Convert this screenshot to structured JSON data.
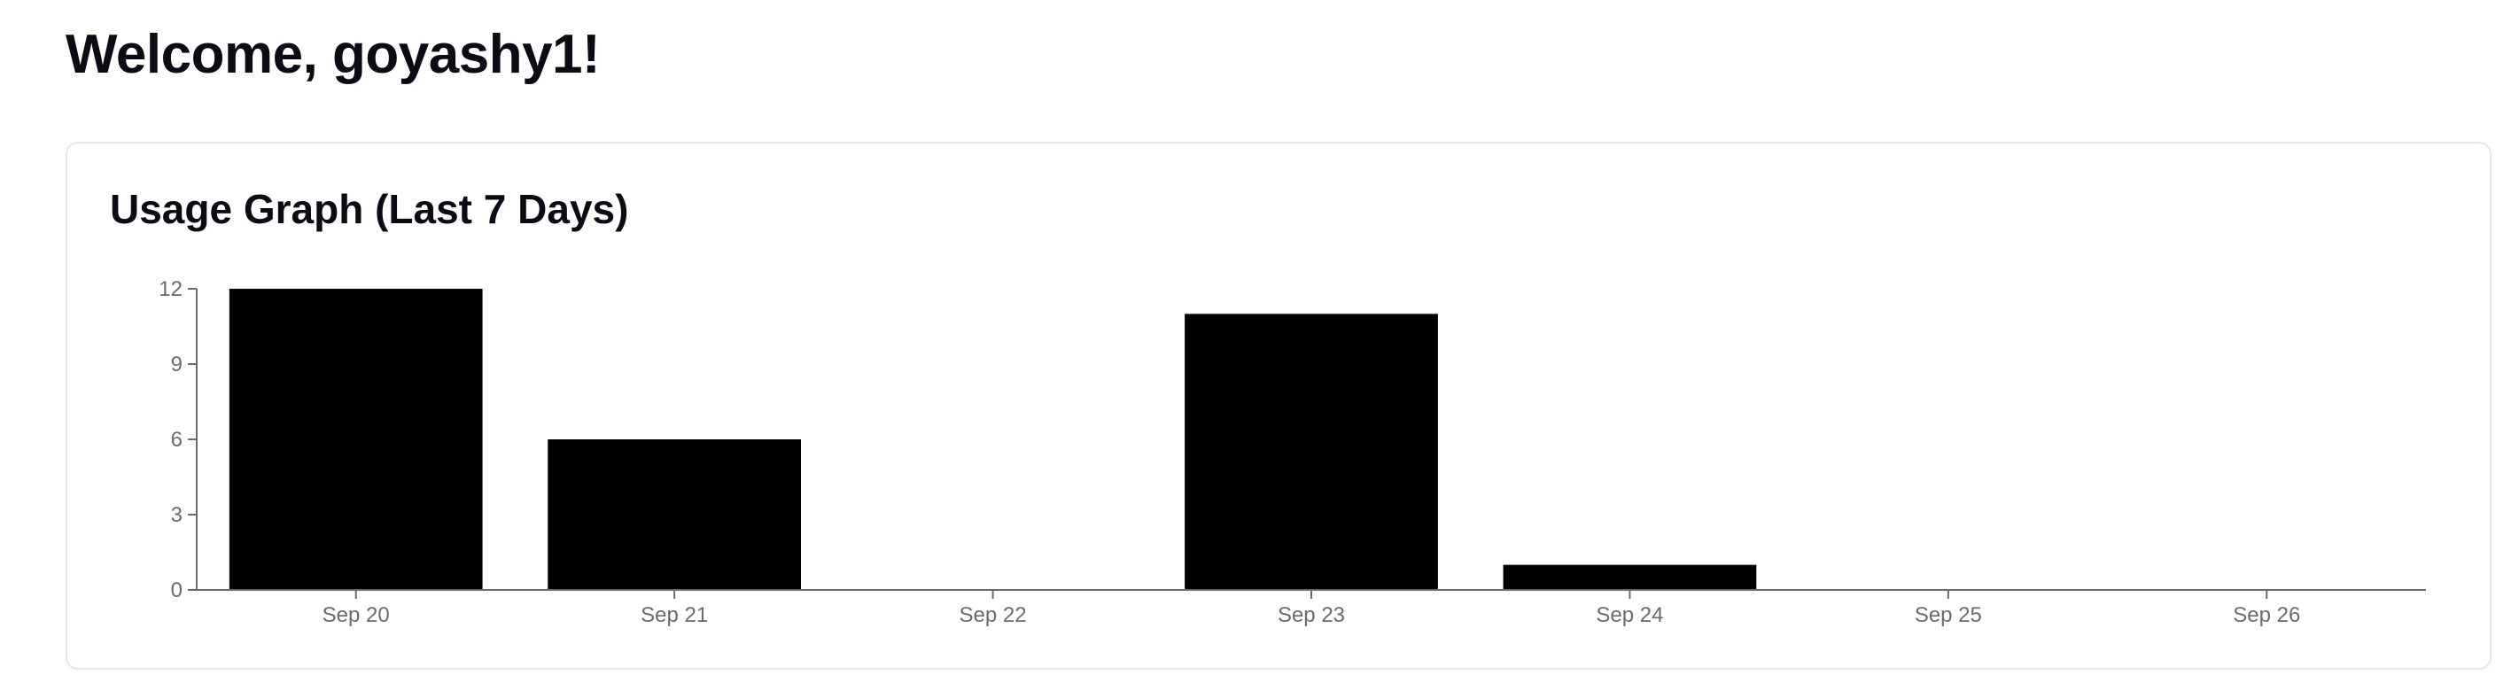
{
  "header": {
    "welcome": "Welcome, goyashy1!"
  },
  "usage_card": {
    "title": "Usage Graph (Last 7 Days)"
  },
  "colors": {
    "bar": "#000000",
    "axis": "#6b6b6b",
    "card_border": "#e5e7eb"
  },
  "chart_data": {
    "type": "bar",
    "title": "Usage Graph (Last 7 Days)",
    "xlabel": "",
    "ylabel": "",
    "categories": [
      "Sep 20",
      "Sep 21",
      "Sep 22",
      "Sep 23",
      "Sep 24",
      "Sep 25",
      "Sep 26"
    ],
    "values": [
      12,
      6,
      0,
      11,
      1,
      0,
      0
    ],
    "ylim": [
      0,
      12
    ],
    "yticks": [
      0,
      3,
      6,
      9,
      12
    ],
    "grid": false,
    "legend": "none"
  }
}
